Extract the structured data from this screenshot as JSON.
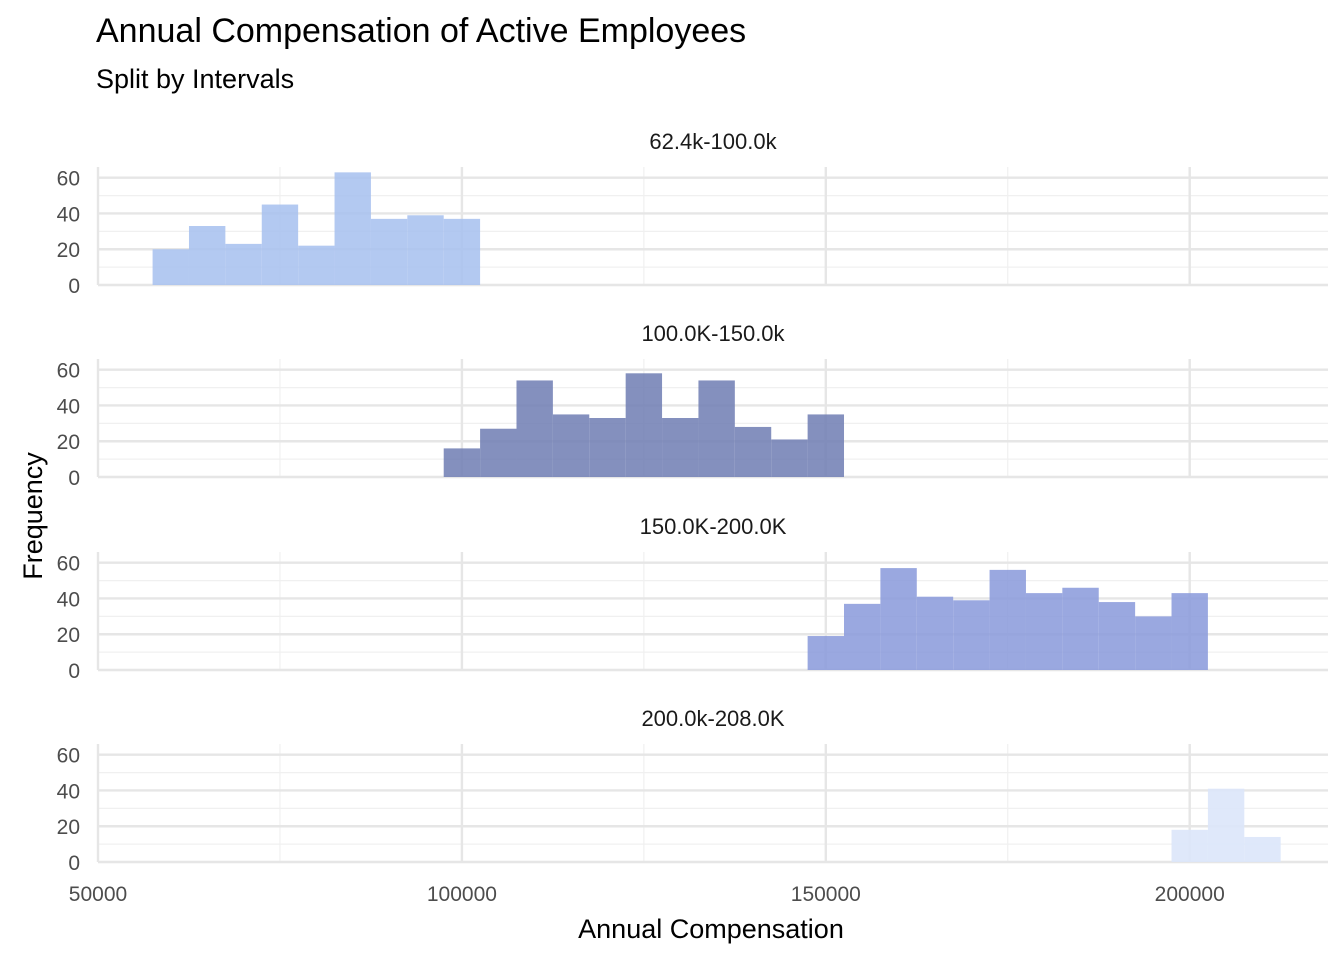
{
  "chart_data": {
    "type": "bar",
    "title": "Annual Compensation of Active Employees",
    "subtitle": "Split by Intervals",
    "xlabel": "Annual Compensation",
    "ylabel": "Frequency",
    "xlim": [
      50000,
      219000
    ],
    "ylim": [
      0,
      66
    ],
    "x_ticks": [
      "50000",
      "100000",
      "150000",
      "200000"
    ],
    "y_ticks": [
      "0",
      "20",
      "40",
      "60"
    ],
    "bin_width": 5000,
    "grid": true,
    "panels": [
      {
        "label": "62.4k-100.0k",
        "color": "#a6bfee",
        "opacity": 0.85,
        "bins": [
          {
            "start": 57500,
            "end": 62500,
            "count": 20
          },
          {
            "start": 62500,
            "end": 67500,
            "count": 33
          },
          {
            "start": 67500,
            "end": 72500,
            "count": 23
          },
          {
            "start": 72500,
            "end": 77500,
            "count": 45
          },
          {
            "start": 77500,
            "end": 82500,
            "count": 22
          },
          {
            "start": 82500,
            "end": 87500,
            "count": 63
          },
          {
            "start": 87500,
            "end": 92500,
            "count": 37
          },
          {
            "start": 92500,
            "end": 97500,
            "count": 39
          },
          {
            "start": 97500,
            "end": 102500,
            "count": 37
          }
        ]
      },
      {
        "label": "100.0K-150.0k",
        "color": "#6e7db3",
        "opacity": 0.85,
        "bins": [
          {
            "start": 97500,
            "end": 102500,
            "count": 16
          },
          {
            "start": 102500,
            "end": 107500,
            "count": 27
          },
          {
            "start": 107500,
            "end": 112500,
            "count": 54
          },
          {
            "start": 112500,
            "end": 117500,
            "count": 35
          },
          {
            "start": 117500,
            "end": 122500,
            "count": 33
          },
          {
            "start": 122500,
            "end": 127500,
            "count": 58
          },
          {
            "start": 127500,
            "end": 132500,
            "count": 33
          },
          {
            "start": 132500,
            "end": 137500,
            "count": 54
          },
          {
            "start": 137500,
            "end": 142500,
            "count": 28
          },
          {
            "start": 142500,
            "end": 147500,
            "count": 21
          },
          {
            "start": 147500,
            "end": 152500,
            "count": 35
          }
        ]
      },
      {
        "label": "150.0K-200.0K",
        "color": "#8899db",
        "opacity": 0.85,
        "bins": [
          {
            "start": 147500,
            "end": 152500,
            "count": 19
          },
          {
            "start": 152500,
            "end": 157500,
            "count": 37
          },
          {
            "start": 157500,
            "end": 162500,
            "count": 57
          },
          {
            "start": 162500,
            "end": 167500,
            "count": 41
          },
          {
            "start": 167500,
            "end": 172500,
            "count": 39
          },
          {
            "start": 172500,
            "end": 177500,
            "count": 56
          },
          {
            "start": 177500,
            "end": 182500,
            "count": 43
          },
          {
            "start": 182500,
            "end": 187500,
            "count": 46
          },
          {
            "start": 187500,
            "end": 192500,
            "count": 38
          },
          {
            "start": 192500,
            "end": 197500,
            "count": 30
          },
          {
            "start": 197500,
            "end": 202500,
            "count": 43
          }
        ]
      },
      {
        "label": "200.0k-208.0K",
        "color": "#dce6f9",
        "opacity": 0.9,
        "bins": [
          {
            "start": 197500,
            "end": 202500,
            "count": 18
          },
          {
            "start": 202500,
            "end": 207500,
            "count": 41
          },
          {
            "start": 207500,
            "end": 212500,
            "count": 14
          }
        ]
      }
    ]
  }
}
